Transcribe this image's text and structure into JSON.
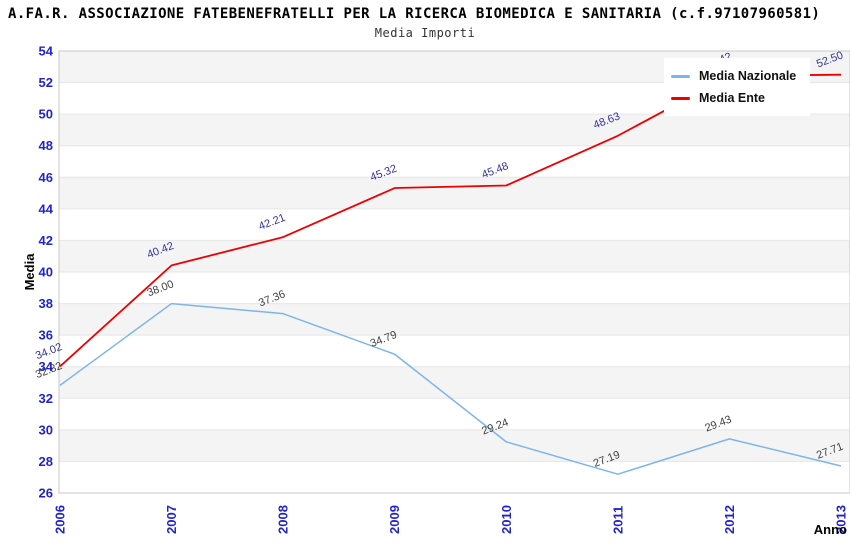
{
  "title": "A.FA.R. ASSOCIAZIONE FATEBENEFRATELLI PER LA RICERCA BIOMEDICA E SANITARIA (c.f.97107960581)",
  "subtitle": "Media Importi",
  "legend": {
    "items": [
      {
        "label": "Media Nazionale",
        "color": "#7cb5ec"
      },
      {
        "label": "Media Ente",
        "color": "#ee0000"
      }
    ]
  },
  "axes": {
    "y_title": "Media",
    "x_title": "Anno",
    "y_ticks": [
      54,
      52,
      50,
      48,
      46,
      44,
      42,
      40,
      38,
      36,
      34,
      32,
      30,
      28,
      26
    ],
    "x_ticks": [
      "2006",
      "2007",
      "2008",
      "2009",
      "2010",
      "2011",
      "2012",
      "2013"
    ],
    "tick_color": "#2323cc",
    "axis_title_color": "#000000"
  },
  "colors": {
    "band_fill": "#f4f4f4",
    "gridline": "#e6e6e6",
    "plot_border": "#c8c8c8"
  },
  "chart_data": {
    "type": "line",
    "title": "Media Importi",
    "x": [
      "2006",
      "2007",
      "2008",
      "2009",
      "2010",
      "2011",
      "2012",
      "2013"
    ],
    "series": [
      {
        "name": "Media Nazionale",
        "color": "#7cb5ec",
        "label_color": "#404040",
        "values": [
          32.82,
          38.0,
          37.36,
          34.79,
          29.24,
          27.19,
          29.43,
          27.71
        ]
      },
      {
        "name": "Media Ente",
        "color": "#ee0000",
        "label_color": "#333399",
        "values": [
          34.02,
          40.42,
          42.21,
          45.32,
          45.48,
          48.63,
          52.42,
          52.5
        ]
      }
    ],
    "xlabel": "Anno",
    "ylabel": "Media",
    "ylim": [
      26,
      54
    ],
    "y_tick_step": 2,
    "grid": true,
    "banded_background": true,
    "legend_position": "top-right",
    "data_labels": true,
    "data_label_format": "0.00"
  }
}
